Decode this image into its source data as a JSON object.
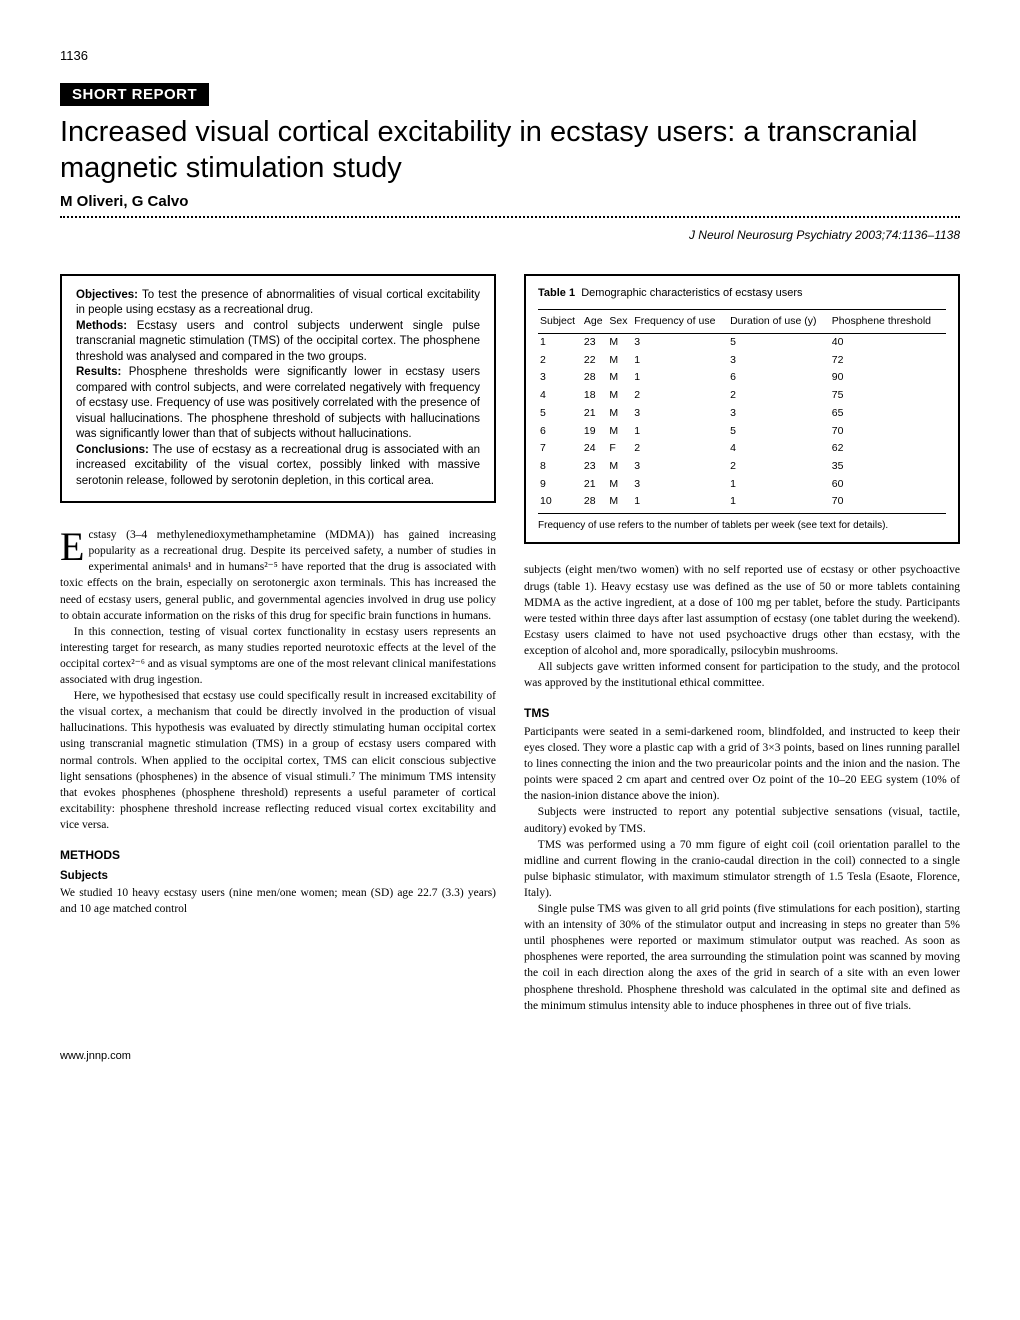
{
  "page_number": "1136",
  "report_label": "SHORT REPORT",
  "title": "Increased visual cortical excitability in ecstasy users: a transcranial magnetic stimulation study",
  "authors": "M Oliveri, G Calvo",
  "citation": "J Neurol Neurosurg Psychiatry 2003;74:1136–1138",
  "abstract": {
    "objectives_label": "Objectives:",
    "objectives": " To test the presence of abnormalities of visual cortical excitability in people using ecstasy as a recreational drug.",
    "methods_label": "Methods:",
    "methods": " Ecstasy users and control subjects underwent single pulse transcranial magnetic stimulation (TMS) of the occipital cortex. The phosphene threshold was analysed and compared in the two groups.",
    "results_label": "Results:",
    "results": " Phosphene thresholds were significantly lower in ecstasy users compared with control subjects, and were correlated negatively with frequency of ecstasy use. Frequency of use was positively correlated with the presence of visual hallucinations. The phosphene threshold of subjects with hallucinations was significantly lower than that of subjects without hallucinations.",
    "conclusions_label": "Conclusions:",
    "conclusions": " The use of ecstasy as a recreational drug is associated with an increased excitability of the visual cortex, possibly linked with massive serotonin release, followed by serotonin depletion, in this cortical area."
  },
  "body": {
    "intro1_first": "cstasy (3–4 methylenedioxymethamphetamine (MDMA)) has gained increasing popularity as a recreational drug. Despite its perceived safety, a number of studies in experimental animals¹ and in humans²⁻⁵ have reported that the drug is associated with toxic effects on the brain, especially on serotonergic axon terminals. This has increased the need of ecstasy users, general public, and governmental agencies involved in drug use policy to obtain accurate information on the risks of this drug for specific brain functions in humans.",
    "intro2": "In this connection, testing of visual cortex functionality in ecstasy users represents an interesting target for research, as many studies reported neurotoxic effects at the level of the occipital cortex²⁻⁶ and as visual symptoms are one of the most relevant clinical manifestations associated with drug ingestion.",
    "intro3": "Here, we hypothesised that ecstasy use could specifically result in increased excitability of the visual cortex, a mechanism that could be directly involved in the production of visual hallucinations. This hypothesis was evaluated by directly stimulating human occipital cortex using transcranial magnetic stimulation (TMS) in a group of ecstasy users compared with normal controls. When applied to the occipital cortex, TMS can elicit conscious subjective light sensations (phosphenes) in the absence of visual stimuli.⁷ The minimum TMS intensity that evokes phosphenes (phosphene threshold) represents a useful parameter of cortical excitability: phosphene threshold increase reflecting reduced visual cortex excitability and vice versa.",
    "methods_head": "METHODS",
    "subjects_head": "Subjects",
    "subjects_p1": "We studied 10 heavy ecstasy users (nine men/one women; mean (SD) age 22.7 (3.3) years) and 10 age matched control",
    "right_p1": "subjects (eight men/two women) with no self reported use of ecstasy or other psychoactive drugs (table 1). Heavy ecstasy use was defined as the use of 50 or more tablets containing MDMA as the active ingredient, at a dose of 100 mg per tablet, before the study. Participants were tested within three days after last assumption of ecstasy (one tablet during the weekend). Ecstasy users claimed to have not used psychoactive drugs other than ecstasy, with the exception of alcohol and, more sporadically, psilocybin mushrooms.",
    "right_p2": "All subjects gave written informed consent for participation to the study, and the protocol was approved by the institutional ethical committee.",
    "tms_head": "TMS",
    "tms_p1": "Participants were seated in a semi-darkened room, blindfolded, and instructed to keep their eyes closed. They wore a plastic cap with a grid of 3×3 points, based on lines running parallel to lines connecting the inion and the two preauricolar points and the inion and the nasion. The points were spaced 2 cm apart and centred over Oz point of the 10–20 EEG system (10% of the nasion-inion distance above the inion).",
    "tms_p2": "Subjects were instructed to report any potential subjective sensations (visual, tactile, auditory) evoked by TMS.",
    "tms_p3": "TMS was performed using a 70 mm figure of eight coil (coil orientation parallel to the midline and current flowing in the cranio-caudal direction in the coil) connected to a single pulse biphasic stimulator, with maximum stimulator strength of 1.5 Tesla (Esaote, Florence, Italy).",
    "tms_p4": "Single pulse TMS was given to all grid points (five stimulations for each position), starting with an intensity of 30% of the stimulator output and increasing in steps no greater than 5% until phosphenes were reported or maximum stimulator output was reached. As soon as phosphenes were reported, the area surrounding the stimulation point was scanned by moving the coil in each direction along the axes of the grid in search of a site with an even lower phosphene threshold. Phosphene threshold was calculated in the optimal site and defined as the minimum stimulus intensity able to induce phosphenes in three out of five trials."
  },
  "table1": {
    "label": "Table 1",
    "caption": "Demographic characteristics of ecstasy users",
    "columns": [
      "Subject",
      "Age",
      "Sex",
      "Frequency of use",
      "Duration of use (y)",
      "Phosphene threshold"
    ],
    "rows": [
      [
        "1",
        "23",
        "M",
        "3",
        "5",
        "40"
      ],
      [
        "2",
        "22",
        "M",
        "1",
        "3",
        "72"
      ],
      [
        "3",
        "28",
        "M",
        "1",
        "6",
        "90"
      ],
      [
        "4",
        "18",
        "M",
        "2",
        "2",
        "75"
      ],
      [
        "5",
        "21",
        "M",
        "3",
        "3",
        "65"
      ],
      [
        "6",
        "19",
        "M",
        "1",
        "5",
        "70"
      ],
      [
        "7",
        "24",
        "F",
        "2",
        "4",
        "62"
      ],
      [
        "8",
        "23",
        "M",
        "3",
        "2",
        "35"
      ],
      [
        "9",
        "21",
        "M",
        "3",
        "1",
        "60"
      ],
      [
        "10",
        "28",
        "M",
        "1",
        "1",
        "70"
      ]
    ],
    "note": "Frequency of use refers to the number of tablets per week (see text for details)."
  },
  "footer_url": "www.jnnp.com"
}
